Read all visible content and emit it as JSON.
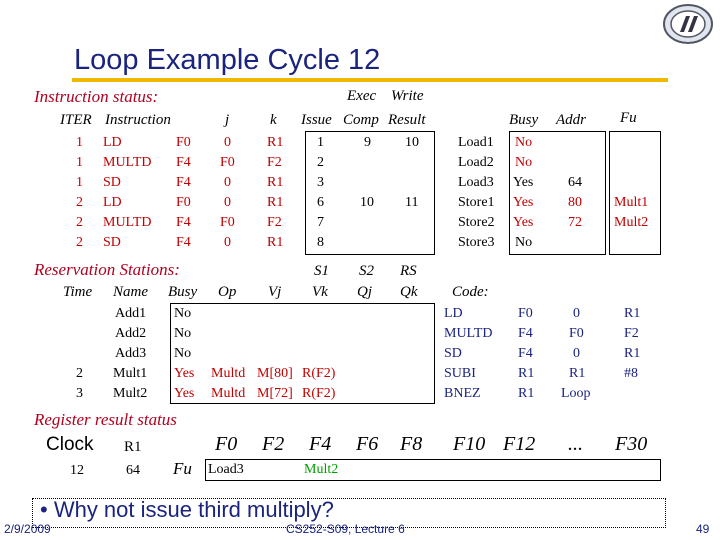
{
  "slide": {
    "title": "Loop Example Cycle 12",
    "question": "• Why not issue third multiply?",
    "footer_date": "2/9/2009",
    "footer_course": "CS252-S09, Lecture 6",
    "page_number": "49"
  },
  "instruction_status": {
    "section_label": "Instruction status:",
    "header_top": {
      "exec": "Exec",
      "write": "Write"
    },
    "headers": {
      "iter": "ITER",
      "instruction": "Instruction",
      "j": "j",
      "k": "k",
      "issue": "Issue",
      "comp": "Comp",
      "result": "Result"
    },
    "rows": [
      {
        "iter": "1",
        "op": "LD",
        "dest": "F0",
        "j": "0",
        "k": "R1",
        "issue": "1",
        "comp": "9",
        "result": "10"
      },
      {
        "iter": "1",
        "op": "MULTD",
        "dest": "F4",
        "j": "F0",
        "k": "F2",
        "issue": "2",
        "comp": "",
        "result": ""
      },
      {
        "iter": "1",
        "op": "SD",
        "dest": "F4",
        "j": "0",
        "k": "R1",
        "issue": "3",
        "comp": "",
        "result": ""
      },
      {
        "iter": "2",
        "op": "LD",
        "dest": "F0",
        "j": "0",
        "k": "R1",
        "issue": "6",
        "comp": "10",
        "result": "11"
      },
      {
        "iter": "2",
        "op": "MULTD",
        "dest": "F4",
        "j": "F0",
        "k": "F2",
        "issue": "7",
        "comp": "",
        "result": ""
      },
      {
        "iter": "2",
        "op": "SD",
        "dest": "F4",
        "j": "0",
        "k": "R1",
        "issue": "8",
        "comp": "",
        "result": ""
      }
    ]
  },
  "load_store_buffers": {
    "headers": {
      "busy": "Busy",
      "addr": "Addr",
      "fu": "Fu"
    },
    "rows": [
      {
        "name": "Load1",
        "busy": "No",
        "addr": "",
        "fu": ""
      },
      {
        "name": "Load2",
        "busy": "No",
        "addr": "",
        "fu": ""
      },
      {
        "name": "Load3",
        "busy": "Yes",
        "addr": "64",
        "fu": ""
      },
      {
        "name": "Store1",
        "busy": "Yes",
        "addr": "80",
        "fu": "Mult1"
      },
      {
        "name": "Store2",
        "busy": "Yes",
        "addr": "72",
        "fu": "Mult2"
      },
      {
        "name": "Store3",
        "busy": "No",
        "addr": "",
        "fu": ""
      }
    ]
  },
  "reservation_stations": {
    "section_label": "Reservation Stations:",
    "header_top": {
      "s1": "S1",
      "s2": "S2",
      "rs": "RS"
    },
    "headers": {
      "time": "Time",
      "name": "Name",
      "busy": "Busy",
      "op": "Op",
      "vj": "Vj",
      "vk": "Vk",
      "qj": "Qj",
      "qk": "Qk",
      "code": "Code:"
    },
    "rows": [
      {
        "time": "",
        "name": "Add1",
        "busy": "No",
        "op": "",
        "vj": "",
        "vk": "",
        "qj": "",
        "qk": ""
      },
      {
        "time": "",
        "name": "Add2",
        "busy": "No",
        "op": "",
        "vj": "",
        "vk": "",
        "qj": "",
        "qk": ""
      },
      {
        "time": "",
        "name": "Add3",
        "busy": "No",
        "op": "",
        "vj": "",
        "vk": "",
        "qj": "",
        "qk": ""
      },
      {
        "time": "2",
        "name": "Mult1",
        "busy": "Yes",
        "op": "Multd",
        "vj": "",
        "vk": "M[80]",
        "qj": "R(F2)",
        "qk": ""
      },
      {
        "time": "3",
        "name": "Mult2",
        "busy": "Yes",
        "op": "Multd",
        "vj": "",
        "vk": "M[72]",
        "qj": "R(F2)",
        "qk": ""
      }
    ],
    "code": [
      {
        "op": "LD",
        "a": "F0",
        "b": "0",
        "c": "R1"
      },
      {
        "op": "MULTD",
        "a": "F4",
        "b": "F0",
        "c": "F2"
      },
      {
        "op": "SD",
        "a": "F4",
        "b": "0",
        "c": "R1"
      },
      {
        "op": "SUBI",
        "a": "R1",
        "b": "R1",
        "c": "#8"
      },
      {
        "op": "BNEZ",
        "a": "R1",
        "b": "Loop",
        "c": ""
      }
    ]
  },
  "register_result_status": {
    "section_label": "Register result status",
    "clock_label": "Clock",
    "r1_label": "R1",
    "clock_value": "12",
    "r1_value": "64",
    "fu_label": "Fu",
    "registers": [
      "F0",
      "F2",
      "F4",
      "F6",
      "F8",
      "F10",
      "F12",
      "...",
      "F30"
    ],
    "values": [
      "Load3",
      "",
      "Mult2",
      "",
      "",
      "",
      "",
      "",
      ""
    ]
  },
  "colors": {
    "title": "#1a237e",
    "rule": "#f0b800",
    "section": "#b00020",
    "busy_yes": "#c00000",
    "mult2": "#00a000"
  },
  "logo_icon": "berkeley-seal-icon"
}
